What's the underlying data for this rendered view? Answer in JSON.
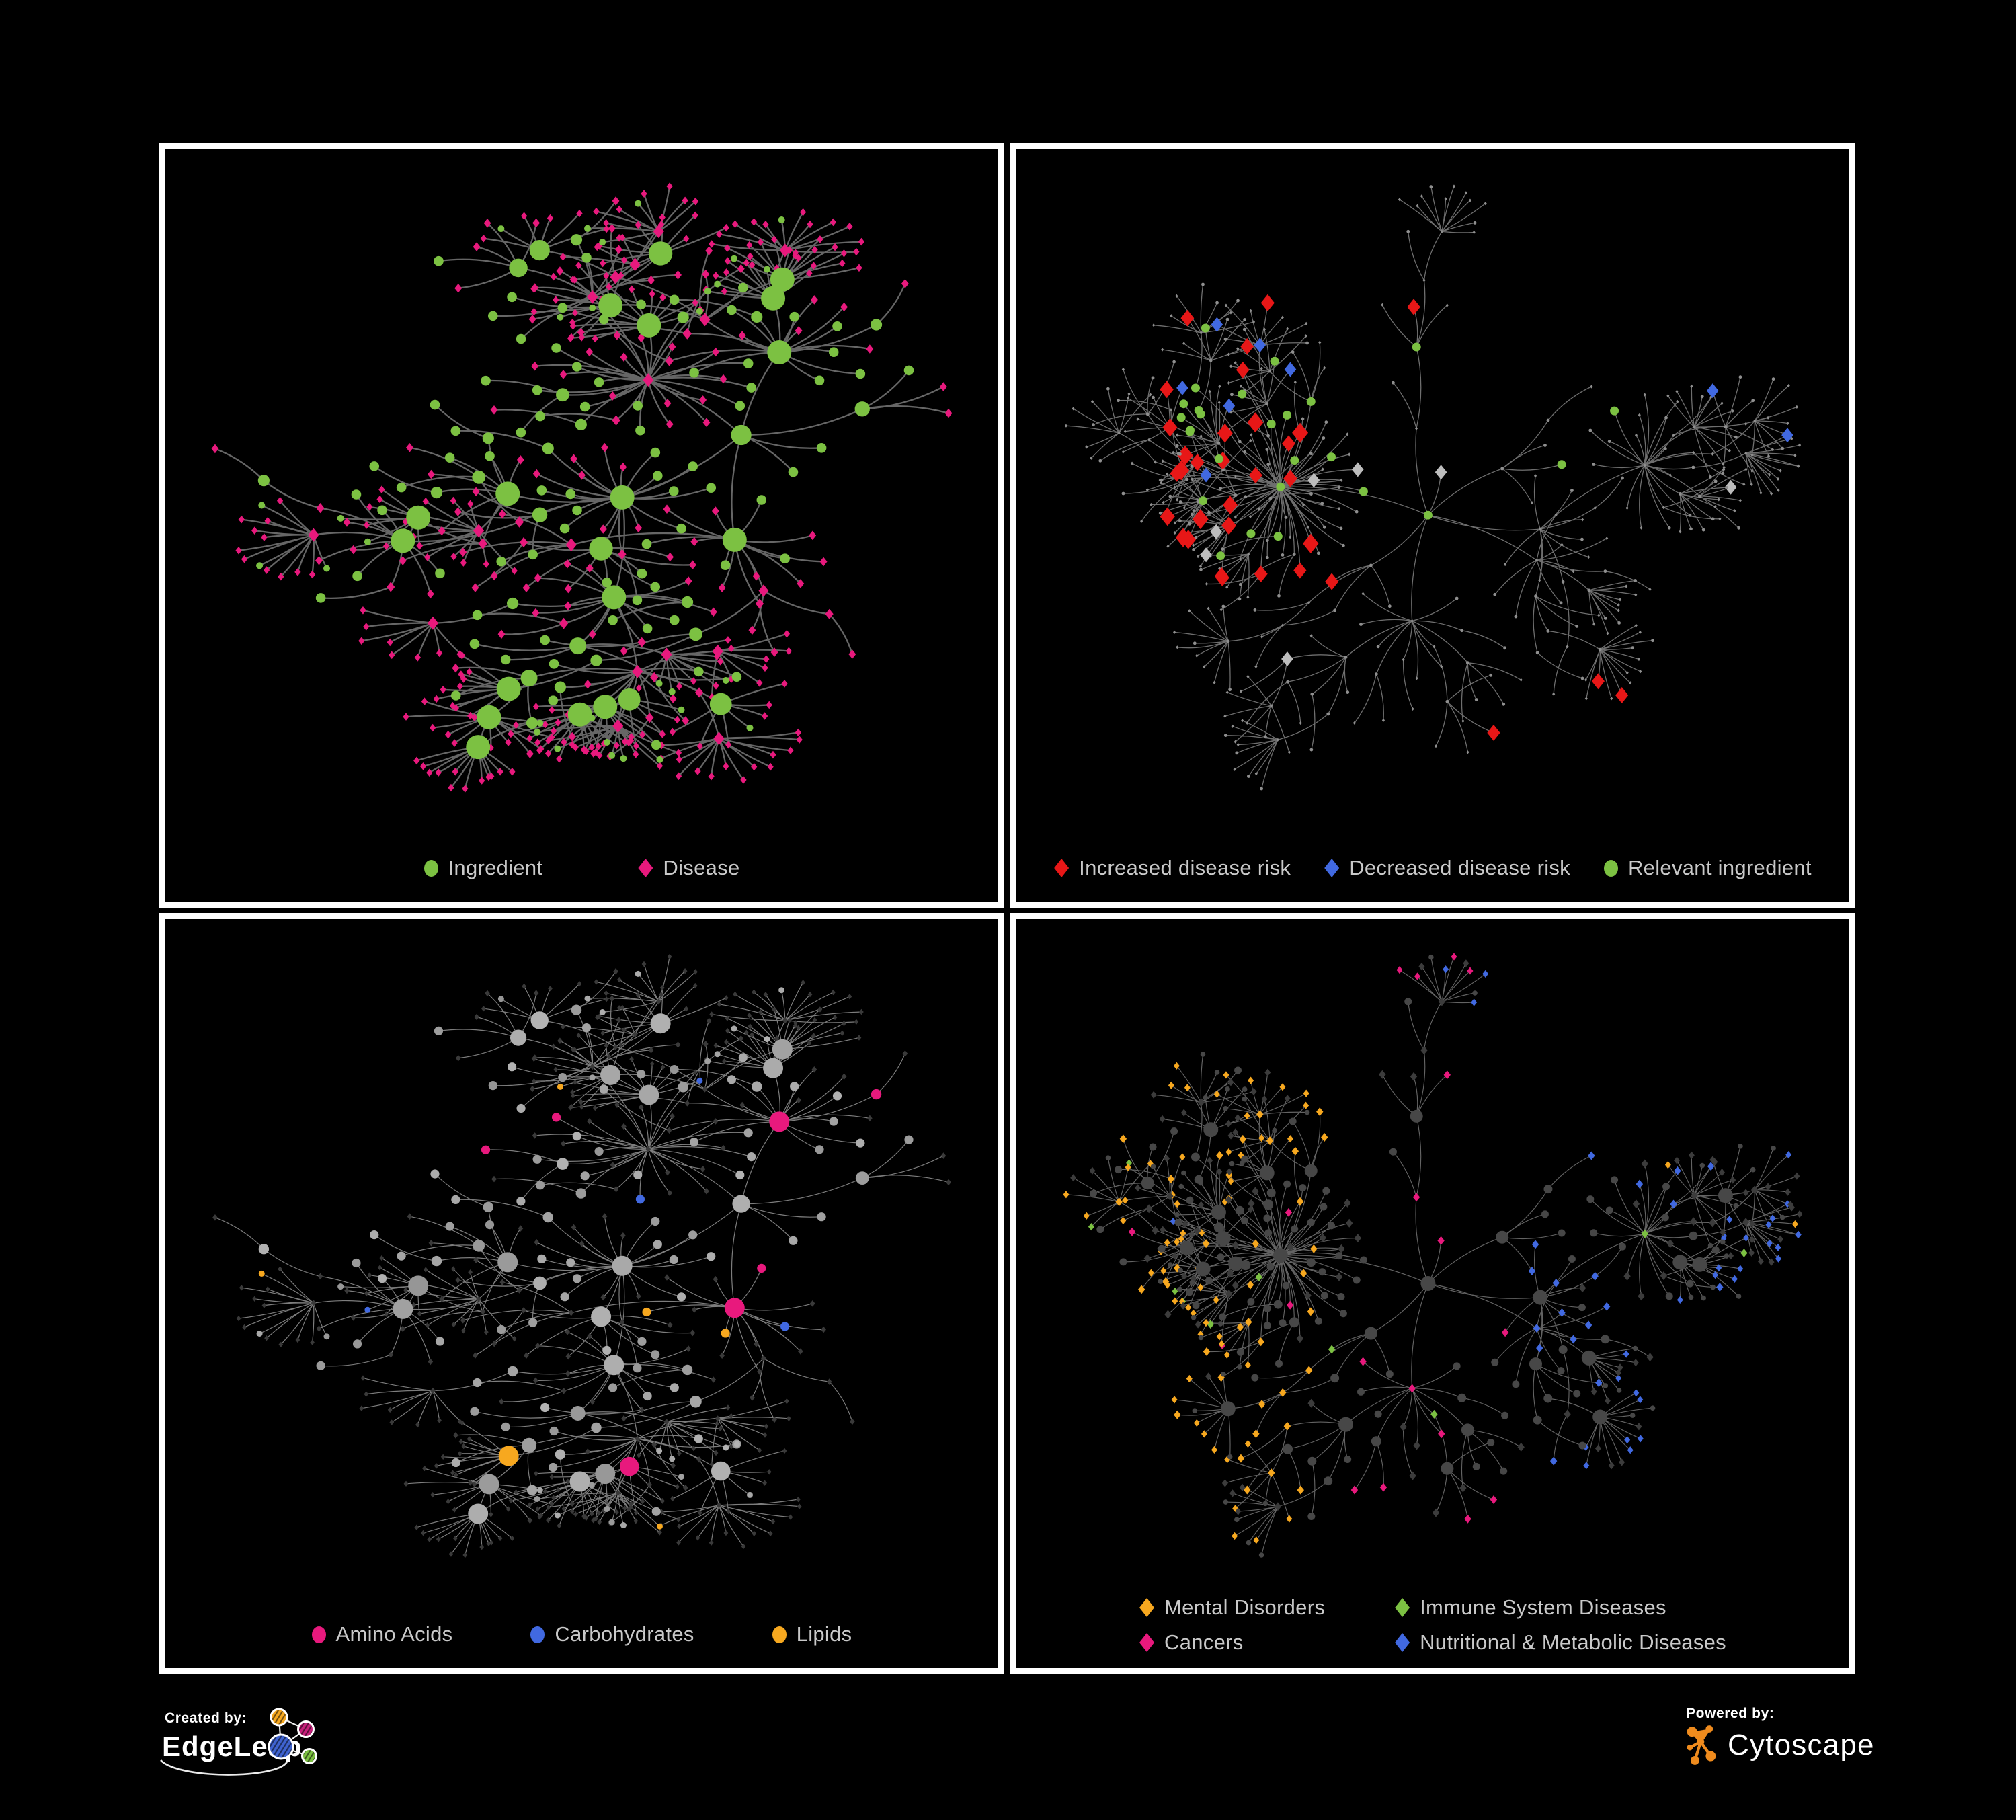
{
  "branding": {
    "created_by": "Created by:",
    "creator_name": "EdgeLeap",
    "powered_by": "Powered by:",
    "engine_name": "Cytoscape",
    "logo": {
      "edgeleap_orange": "#f7a81f",
      "edgeleap_magenta": "#c81f7c",
      "edgeleap_blue": "#3f63d0",
      "edgeleap_green": "#7cc142",
      "cytoscape_orange": "#ef8b1d"
    }
  },
  "colors": {
    "background": "#000000",
    "panel_border": "#ffffff",
    "legend_text": "#c9c9c9"
  },
  "layouts": {
    "A": {
      "seed": 20,
      "grow": 250,
      "spokes": 7,
      "fans": 24,
      "fan_min": 6,
      "fan_max": 15,
      "relax": 34,
      "leaf_diamond": 0.85
    },
    "B": {
      "seed": 77,
      "grow": 245,
      "spokes": 8,
      "fans": 26,
      "fan_min": 6,
      "fan_max": 14,
      "relax": 34,
      "leaf_diamond": 0.8
    }
  },
  "panels": [
    {
      "id": "ingredient-disease",
      "legend": [
        {
          "shape": "circle",
          "color": "#7cc142",
          "label": "Ingredient"
        },
        {
          "shape": "diamond",
          "color": "#e8197d",
          "label": "Disease"
        }
      ],
      "network": {
        "layout": "A",
        "mode": "typed",
        "edge": {
          "color": "#6c6c6c",
          "width": 2.3,
          "opacity": 0.95
        },
        "circle": {
          "color": "#7cc142"
        },
        "diamond": {
          "color": "#e8197d"
        }
      }
    },
    {
      "id": "disease-risk",
      "legend": [
        {
          "shape": "diamond",
          "color": "#e81717",
          "label": "Increased disease risk"
        },
        {
          "shape": "diamond",
          "color": "#4169e1",
          "label": "Decreased disease risk"
        },
        {
          "shape": "circle",
          "color": "#7cc142",
          "label": "Relevant ingredient"
        }
      ],
      "network": {
        "layout": "B",
        "mode": "highlight",
        "edge": {
          "color": "#7a7a7a",
          "width": 1.3,
          "opacity": 0.9
        },
        "base": {
          "color": "#8f8f8f"
        },
        "highlights": {
          "red": {
            "color": "#e81717",
            "count": 33
          },
          "blue": {
            "color": "#4169e1",
            "count": 8
          },
          "gray": {
            "color": "#bdbdbd",
            "count": 7
          },
          "green": {
            "color": "#7cc142",
            "count": 26
          }
        }
      }
    },
    {
      "id": "ingredient-classes",
      "legend": [
        {
          "shape": "circle",
          "color": "#e8197d",
          "label": "Amino Acids"
        },
        {
          "shape": "circle",
          "color": "#4169e1",
          "label": "Carbohydrates"
        },
        {
          "shape": "circle",
          "color": "#f7a81f",
          "label": "Lipids"
        }
      ],
      "network": {
        "layout": "A",
        "mode": "classes",
        "edge": {
          "color": "#9c9c9c",
          "width": 1.2,
          "opacity": 0.8
        },
        "diamond": {
          "color": "#3a3a3a"
        },
        "classes": {
          "gray": "#9a9a9a",
          "yellow": "#f7a81f",
          "blue": "#4169e1",
          "pink": "#e8197d"
        }
      }
    },
    {
      "id": "disease-categories",
      "legend": [
        {
          "shape": "diamond",
          "color": "#f7a81f",
          "label": "Mental Disorders"
        },
        {
          "shape": "diamond",
          "color": "#7cc142",
          "label": "Immune System Diseases"
        },
        {
          "shape": "diamond",
          "color": "#e8197d",
          "label": "Cancers"
        },
        {
          "shape": "diamond",
          "color": "#4169e1",
          "label": "Nutritional & Metabolic Diseases"
        }
      ],
      "network": {
        "layout": "B",
        "mode": "categories",
        "edge": {
          "color": "#6e6e6e",
          "width": 1.15,
          "opacity": 0.9
        },
        "circle": {
          "color": "#474747"
        },
        "diamond": {
          "color": "#3c3c3c"
        },
        "categories": {
          "orange": "#f7a81f",
          "pink": "#e8197d",
          "blue": "#4169e1",
          "green": "#7cc142"
        }
      }
    }
  ]
}
